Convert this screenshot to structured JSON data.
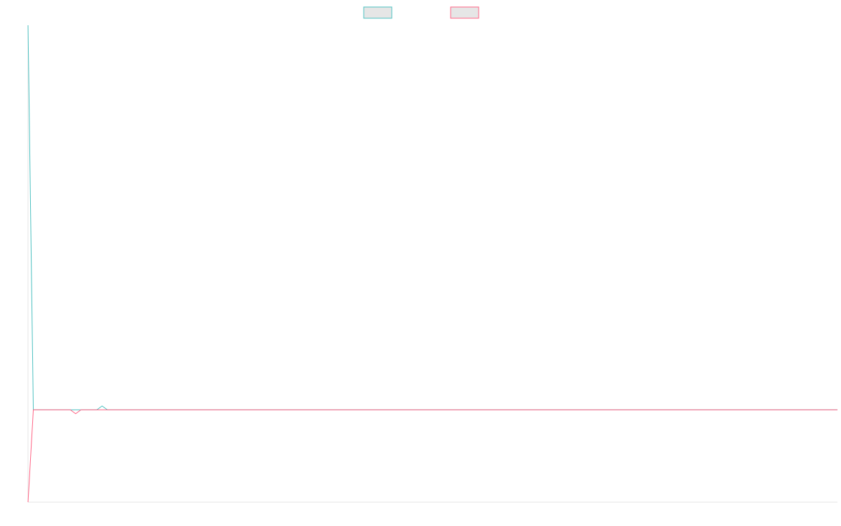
{
  "chart_data": {
    "type": "line",
    "title": "",
    "xlabel": "",
    "ylabel": "",
    "legend": {
      "position": "top"
    },
    "grid": false,
    "x": [
      0,
      1,
      2,
      3,
      4,
      5,
      6,
      7,
      8,
      9,
      10,
      11,
      12,
      13,
      14,
      15,
      16,
      17,
      18,
      19,
      20,
      21,
      22,
      23,
      24,
      25,
      26,
      27,
      28,
      29,
      30,
      31,
      32,
      33,
      34,
      35,
      36,
      37,
      38,
      39,
      40,
      41,
      42,
      43,
      44,
      45,
      46,
      47,
      48,
      49,
      50,
      51,
      52,
      53,
      54,
      55,
      56,
      57,
      58,
      59,
      60,
      61,
      62,
      63,
      64,
      65,
      66,
      67,
      68,
      69,
      70,
      71,
      72,
      73,
      74,
      75,
      76,
      77,
      78,
      79,
      80,
      81,
      82,
      83,
      84,
      85,
      86,
      87,
      88,
      89,
      90,
      91,
      92,
      93,
      94,
      95,
      96,
      97,
      98,
      99,
      100,
      101,
      102,
      103,
      104,
      105,
      106,
      107,
      108,
      109,
      110,
      111,
      112,
      113,
      114,
      115,
      116,
      117,
      118,
      119,
      120,
      121,
      122,
      123,
      124,
      125,
      126,
      127,
      128,
      129,
      130,
      131,
      132,
      133,
      134,
      135,
      136,
      137,
      138,
      139,
      140,
      141,
      142,
      143,
      144,
      145,
      146,
      147,
      148,
      149,
      150,
      151,
      152,
      153
    ],
    "ylim": [
      -24,
      100
    ],
    "series": [
      {
        "name": "",
        "color": "#4bc0c0",
        "values": [
          100,
          0,
          0,
          0,
          0,
          0,
          0,
          0,
          0,
          0,
          0,
          0,
          0,
          0,
          1,
          0,
          0,
          0,
          0,
          0,
          0,
          0,
          0,
          0,
          0,
          0,
          0,
          0,
          0,
          0,
          0,
          0,
          0,
          0,
          0,
          0,
          0,
          0,
          0,
          0,
          0,
          0,
          0,
          0,
          0,
          0,
          0,
          0,
          0,
          0,
          0,
          0,
          0,
          0,
          0,
          0,
          0,
          0,
          0,
          0,
          0,
          0,
          0,
          0,
          0,
          0,
          0,
          0,
          0,
          0,
          0,
          0,
          0,
          0,
          0,
          0,
          0,
          0,
          0,
          0,
          0,
          0,
          0,
          0,
          0,
          0,
          0,
          0,
          0,
          0,
          0,
          0,
          0,
          0,
          0,
          0,
          0,
          0,
          0,
          0,
          0,
          0,
          0,
          0,
          0,
          0,
          0,
          0,
          0,
          0,
          0,
          0,
          0,
          0,
          0,
          0,
          0,
          0,
          0,
          0,
          0,
          0,
          0,
          0,
          0,
          0,
          0,
          0,
          0,
          0,
          0,
          0,
          0,
          0,
          0,
          0,
          0,
          0,
          0,
          0,
          0,
          0,
          0,
          0,
          0,
          0,
          0,
          0,
          0,
          0,
          0,
          0,
          0,
          0
        ]
      },
      {
        "name": "",
        "color": "#ff6384",
        "values": [
          -24,
          0,
          0,
          0,
          0,
          0,
          0,
          0,
          0,
          -1,
          0,
          0,
          0,
          0,
          0,
          0,
          0,
          0,
          0,
          0,
          0,
          0,
          0,
          0,
          0,
          0,
          0,
          0,
          0,
          0,
          0,
          0,
          0,
          0,
          0,
          0,
          0,
          0,
          0,
          0,
          0,
          0,
          0,
          0,
          0,
          0,
          0,
          0,
          0,
          0,
          0,
          0,
          0,
          0,
          0,
          0,
          0,
          0,
          0,
          0,
          0,
          0,
          0,
          0,
          0,
          0,
          0,
          0,
          0,
          0,
          0,
          0,
          0,
          0,
          0,
          0,
          0,
          0,
          0,
          0,
          0,
          0,
          0,
          0,
          0,
          0,
          0,
          0,
          0,
          0,
          0,
          0,
          0,
          0,
          0,
          0,
          0,
          0,
          0,
          0,
          0,
          0,
          0,
          0,
          0,
          0,
          0,
          0,
          0,
          0,
          0,
          0,
          0,
          0,
          0,
          0,
          0,
          0,
          0,
          0,
          0,
          0,
          0,
          0,
          0,
          0,
          0,
          0,
          0,
          0,
          0,
          0,
          0,
          0,
          0,
          0,
          0,
          0,
          0,
          0,
          0,
          0,
          0,
          0,
          0,
          0,
          0,
          0,
          0,
          0,
          0,
          0,
          0,
          0
        ]
      }
    ]
  }
}
